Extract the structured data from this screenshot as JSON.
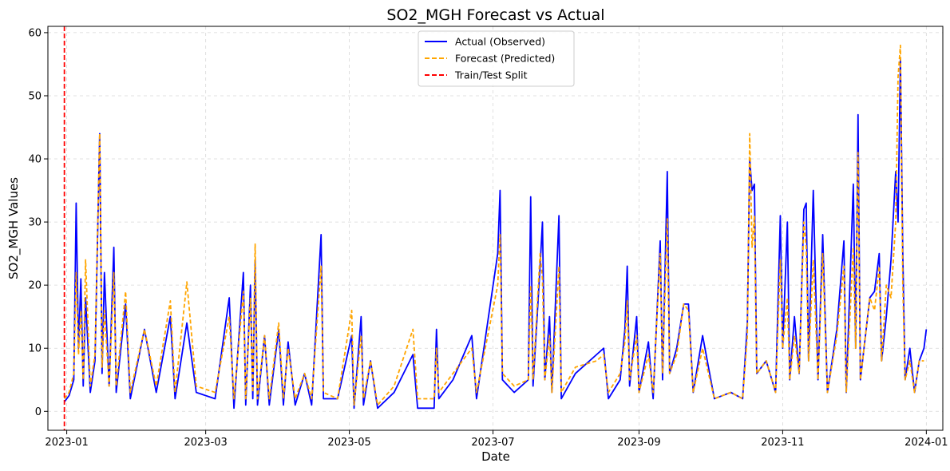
{
  "chart_data": {
    "type": "line",
    "title": "SO2_MGH Forecast vs Actual",
    "xlabel": "Date",
    "ylabel": "SO2_MGH Values",
    "x_range": [
      "2022-12-24",
      "2024-01-08"
    ],
    "ylim": [
      -3,
      61
    ],
    "x_ticks": [
      "2023-01",
      "2023-03",
      "2023-05",
      "2023-07",
      "2023-09",
      "2023-11",
      "2024-01"
    ],
    "y_ticks": [
      0,
      10,
      20,
      30,
      40,
      50,
      60
    ],
    "grid": true,
    "legend_position": "top-center",
    "split_date": "2022-12-31",
    "series": [
      {
        "name": "Actual (Observed)",
        "color": "#0000ff",
        "style": "solid",
        "points": [
          [
            "2022-12-31",
            1.5
          ],
          [
            "2023-01-02",
            2.5
          ],
          [
            "2023-01-04",
            5
          ],
          [
            "2023-01-05",
            33
          ],
          [
            "2023-01-06",
            10
          ],
          [
            "2023-01-07",
            21
          ],
          [
            "2023-01-08",
            4
          ],
          [
            "2023-01-09",
            18
          ],
          [
            "2023-01-11",
            3
          ],
          [
            "2023-01-13",
            8
          ],
          [
            "2023-01-15",
            44
          ],
          [
            "2023-01-16",
            6
          ],
          [
            "2023-01-17",
            22
          ],
          [
            "2023-01-19",
            4
          ],
          [
            "2023-01-21",
            26
          ],
          [
            "2023-01-22",
            3
          ],
          [
            "2023-01-26",
            17
          ],
          [
            "2023-01-28",
            2
          ],
          [
            "2023-02-03",
            13
          ],
          [
            "2023-02-08",
            3
          ],
          [
            "2023-02-14",
            15
          ],
          [
            "2023-02-16",
            2
          ],
          [
            "2023-02-21",
            14
          ],
          [
            "2023-02-25",
            3
          ],
          [
            "2023-03-05",
            2
          ],
          [
            "2023-03-11",
            18
          ],
          [
            "2023-03-13",
            0.5
          ],
          [
            "2023-03-17",
            22
          ],
          [
            "2023-03-18",
            1
          ],
          [
            "2023-03-20",
            20
          ],
          [
            "2023-03-21",
            2
          ],
          [
            "2023-03-22",
            24
          ],
          [
            "2023-03-23",
            1
          ],
          [
            "2023-03-26",
            12
          ],
          [
            "2023-03-28",
            1
          ],
          [
            "2023-04-01",
            13
          ],
          [
            "2023-04-03",
            1
          ],
          [
            "2023-04-05",
            11
          ],
          [
            "2023-04-08",
            1
          ],
          [
            "2023-04-12",
            6
          ],
          [
            "2023-04-15",
            1
          ],
          [
            "2023-04-19",
            28
          ],
          [
            "2023-04-20",
            2
          ],
          [
            "2023-04-26",
            2
          ],
          [
            "2023-05-02",
            12
          ],
          [
            "2023-05-03",
            0.5
          ],
          [
            "2023-05-06",
            15
          ],
          [
            "2023-05-07",
            1
          ],
          [
            "2023-05-10",
            8
          ],
          [
            "2023-05-13",
            0.5
          ],
          [
            "2023-05-20",
            3
          ],
          [
            "2023-05-28",
            9
          ],
          [
            "2023-05-30",
            0.5
          ],
          [
            "2023-06-06",
            0.5
          ],
          [
            "2023-06-07",
            13
          ],
          [
            "2023-06-08",
            2
          ],
          [
            "2023-06-14",
            5
          ],
          [
            "2023-06-22",
            12
          ],
          [
            "2023-06-24",
            2
          ],
          [
            "2023-07-03",
            25
          ],
          [
            "2023-07-04",
            35
          ],
          [
            "2023-07-05",
            5
          ],
          [
            "2023-07-10",
            3
          ],
          [
            "2023-07-16",
            5
          ],
          [
            "2023-07-17",
            34
          ],
          [
            "2023-07-18",
            4
          ],
          [
            "2023-07-21",
            23
          ],
          [
            "2023-07-22",
            30
          ],
          [
            "2023-07-23",
            5
          ],
          [
            "2023-07-25",
            15
          ],
          [
            "2023-07-26",
            3
          ],
          [
            "2023-07-29",
            31
          ],
          [
            "2023-07-30",
            2
          ],
          [
            "2023-08-05",
            6
          ],
          [
            "2023-08-14",
            9
          ],
          [
            "2023-08-17",
            10
          ],
          [
            "2023-08-19",
            2
          ],
          [
            "2023-08-24",
            5
          ],
          [
            "2023-08-26",
            13
          ],
          [
            "2023-08-27",
            23
          ],
          [
            "2023-08-28",
            4
          ],
          [
            "2023-08-31",
            15
          ],
          [
            "2023-09-01",
            3
          ],
          [
            "2023-09-05",
            11
          ],
          [
            "2023-09-07",
            2
          ],
          [
            "2023-09-10",
            27
          ],
          [
            "2023-09-11",
            5
          ],
          [
            "2023-09-13",
            38
          ],
          [
            "2023-09-14",
            6
          ],
          [
            "2023-09-17",
            10
          ],
          [
            "2023-09-20",
            17
          ],
          [
            "2023-09-22",
            17
          ],
          [
            "2023-09-24",
            3
          ],
          [
            "2023-09-28",
            12
          ],
          [
            "2023-10-03",
            2
          ],
          [
            "2023-10-10",
            3
          ],
          [
            "2023-10-15",
            2
          ],
          [
            "2023-10-17",
            14
          ],
          [
            "2023-10-18",
            40
          ],
          [
            "2023-10-19",
            35
          ],
          [
            "2023-10-20",
            36
          ],
          [
            "2023-10-21",
            6
          ],
          [
            "2023-10-25",
            8
          ],
          [
            "2023-10-29",
            3
          ],
          [
            "2023-10-31",
            31
          ],
          [
            "2023-11-01",
            10
          ],
          [
            "2023-11-03",
            30
          ],
          [
            "2023-11-04",
            5
          ],
          [
            "2023-11-06",
            15
          ],
          [
            "2023-11-08",
            6
          ],
          [
            "2023-11-10",
            32
          ],
          [
            "2023-11-11",
            33
          ],
          [
            "2023-11-12",
            8
          ],
          [
            "2023-11-14",
            35
          ],
          [
            "2023-11-16",
            5
          ],
          [
            "2023-11-18",
            28
          ],
          [
            "2023-11-20",
            3
          ],
          [
            "2023-11-24",
            13
          ],
          [
            "2023-11-27",
            27
          ],
          [
            "2023-11-28",
            3
          ],
          [
            "2023-12-01",
            36
          ],
          [
            "2023-12-02",
            10
          ],
          [
            "2023-12-03",
            47
          ],
          [
            "2023-12-04",
            5
          ],
          [
            "2023-12-08",
            18
          ],
          [
            "2023-12-10",
            19
          ],
          [
            "2023-12-12",
            25
          ],
          [
            "2023-12-13",
            8
          ],
          [
            "2023-12-15",
            15
          ],
          [
            "2023-12-17",
            24
          ],
          [
            "2023-12-19",
            38
          ],
          [
            "2023-12-20",
            30
          ],
          [
            "2023-12-21",
            56
          ],
          [
            "2023-12-22",
            25
          ],
          [
            "2023-12-23",
            5
          ],
          [
            "2023-12-25",
            10
          ],
          [
            "2023-12-27",
            3
          ],
          [
            "2023-12-29",
            8
          ],
          [
            "2023-12-31",
            10
          ],
          [
            "2024-01-01",
            13
          ]
        ]
      },
      {
        "name": "Forecast (Predicted)",
        "color": "#ffa500",
        "style": "dashed",
        "points": [
          [
            "2022-12-31",
            2
          ],
          [
            "2023-01-02",
            3
          ],
          [
            "2023-01-04",
            6
          ],
          [
            "2023-01-05",
            22
          ],
          [
            "2023-01-06",
            9
          ],
          [
            "2023-01-07",
            16
          ],
          [
            "2023-01-08",
            5
          ],
          [
            "2023-01-09",
            24
          ],
          [
            "2023-01-11",
            4
          ],
          [
            "2023-01-13",
            9
          ],
          [
            "2023-01-15",
            44
          ],
          [
            "2023-01-16",
            7
          ],
          [
            "2023-01-17",
            16
          ],
          [
            "2023-01-19",
            4
          ],
          [
            "2023-01-21",
            22
          ],
          [
            "2023-01-22",
            4
          ],
          [
            "2023-01-26",
            19
          ],
          [
            "2023-01-28",
            3
          ],
          [
            "2023-02-03",
            13
          ],
          [
            "2023-02-08",
            4
          ],
          [
            "2023-02-14",
            17.5
          ],
          [
            "2023-02-16",
            3
          ],
          [
            "2023-02-21",
            20.5
          ],
          [
            "2023-02-25",
            4
          ],
          [
            "2023-03-05",
            3
          ],
          [
            "2023-03-11",
            15
          ],
          [
            "2023-03-13",
            2
          ],
          [
            "2023-03-17",
            19
          ],
          [
            "2023-03-18",
            2
          ],
          [
            "2023-03-20",
            18
          ],
          [
            "2023-03-21",
            3
          ],
          [
            "2023-03-22",
            26.5
          ],
          [
            "2023-03-23",
            2
          ],
          [
            "2023-03-26",
            12
          ],
          [
            "2023-03-28",
            2
          ],
          [
            "2023-04-01",
            14
          ],
          [
            "2023-04-03",
            2
          ],
          [
            "2023-04-05",
            10
          ],
          [
            "2023-04-08",
            2
          ],
          [
            "2023-04-12",
            6
          ],
          [
            "2023-04-15",
            2
          ],
          [
            "2023-04-19",
            23
          ],
          [
            "2023-04-20",
            3
          ],
          [
            "2023-04-26",
            2
          ],
          [
            "2023-05-02",
            16
          ],
          [
            "2023-05-03",
            1
          ],
          [
            "2023-05-06",
            12
          ],
          [
            "2023-05-07",
            2
          ],
          [
            "2023-05-10",
            8
          ],
          [
            "2023-05-13",
            1
          ],
          [
            "2023-05-20",
            4
          ],
          [
            "2023-05-28",
            13
          ],
          [
            "2023-05-30",
            2
          ],
          [
            "2023-06-06",
            2
          ],
          [
            "2023-06-07",
            10
          ],
          [
            "2023-06-08",
            3
          ],
          [
            "2023-06-14",
            6
          ],
          [
            "2023-06-22",
            10
          ],
          [
            "2023-06-24",
            3
          ],
          [
            "2023-07-03",
            20
          ],
          [
            "2023-07-04",
            28
          ],
          [
            "2023-07-05",
            6
          ],
          [
            "2023-07-10",
            4
          ],
          [
            "2023-07-16",
            5
          ],
          [
            "2023-07-17",
            20
          ],
          [
            "2023-07-18",
            5
          ],
          [
            "2023-07-21",
            25
          ],
          [
            "2023-07-22",
            21
          ],
          [
            "2023-07-23",
            5
          ],
          [
            "2023-07-25",
            12
          ],
          [
            "2023-07-26",
            3
          ],
          [
            "2023-07-29",
            23
          ],
          [
            "2023-07-30",
            3
          ],
          [
            "2023-08-05",
            7
          ],
          [
            "2023-08-14",
            8
          ],
          [
            "2023-08-17",
            9
          ],
          [
            "2023-08-19",
            3
          ],
          [
            "2023-08-24",
            6
          ],
          [
            "2023-08-26",
            11
          ],
          [
            "2023-08-27",
            17.5
          ],
          [
            "2023-08-28",
            5
          ],
          [
            "2023-08-31",
            12
          ],
          [
            "2023-09-01",
            3
          ],
          [
            "2023-09-05",
            9
          ],
          [
            "2023-09-07",
            3
          ],
          [
            "2023-09-10",
            25
          ],
          [
            "2023-09-11",
            6
          ],
          [
            "2023-09-13",
            30.5
          ],
          [
            "2023-09-14",
            6
          ],
          [
            "2023-09-17",
            9
          ],
          [
            "2023-09-20",
            17
          ],
          [
            "2023-09-22",
            16
          ],
          [
            "2023-09-24",
            3
          ],
          [
            "2023-09-28",
            10
          ],
          [
            "2023-10-03",
            2
          ],
          [
            "2023-10-10",
            3
          ],
          [
            "2023-10-15",
            2
          ],
          [
            "2023-10-17",
            12
          ],
          [
            "2023-10-18",
            44
          ],
          [
            "2023-10-19",
            26
          ],
          [
            "2023-10-20",
            31
          ],
          [
            "2023-10-21",
            6
          ],
          [
            "2023-10-25",
            8
          ],
          [
            "2023-10-29",
            3
          ],
          [
            "2023-10-31",
            24
          ],
          [
            "2023-11-01",
            10
          ],
          [
            "2023-11-03",
            18
          ],
          [
            "2023-11-04",
            5
          ],
          [
            "2023-11-06",
            12
          ],
          [
            "2023-11-08",
            6
          ],
          [
            "2023-11-10",
            30
          ],
          [
            "2023-11-11",
            26
          ],
          [
            "2023-11-12",
            8
          ],
          [
            "2023-11-14",
            24
          ],
          [
            "2023-11-16",
            5
          ],
          [
            "2023-11-18",
            25
          ],
          [
            "2023-11-20",
            3
          ],
          [
            "2023-11-24",
            12
          ],
          [
            "2023-11-27",
            23
          ],
          [
            "2023-11-28",
            3
          ],
          [
            "2023-12-01",
            26
          ],
          [
            "2023-12-02",
            10
          ],
          [
            "2023-12-03",
            41
          ],
          [
            "2023-12-04",
            5
          ],
          [
            "2023-12-08",
            18
          ],
          [
            "2023-12-10",
            16
          ],
          [
            "2023-12-12",
            23
          ],
          [
            "2023-12-13",
            8
          ],
          [
            "2023-12-15",
            20
          ],
          [
            "2023-12-17",
            18
          ],
          [
            "2023-12-19",
            30
          ],
          [
            "2023-12-20",
            53
          ],
          [
            "2023-12-21",
            58
          ],
          [
            "2023-12-22",
            20
          ],
          [
            "2023-12-23",
            5
          ],
          [
            "2023-12-25",
            8
          ],
          [
            "2023-12-27",
            3
          ],
          [
            "2023-12-29",
            8
          ],
          [
            "2023-12-31",
            8
          ]
        ]
      },
      {
        "name": "Train/Test Split",
        "color": "#ff0000",
        "style": "dashed",
        "points": []
      }
    ]
  }
}
